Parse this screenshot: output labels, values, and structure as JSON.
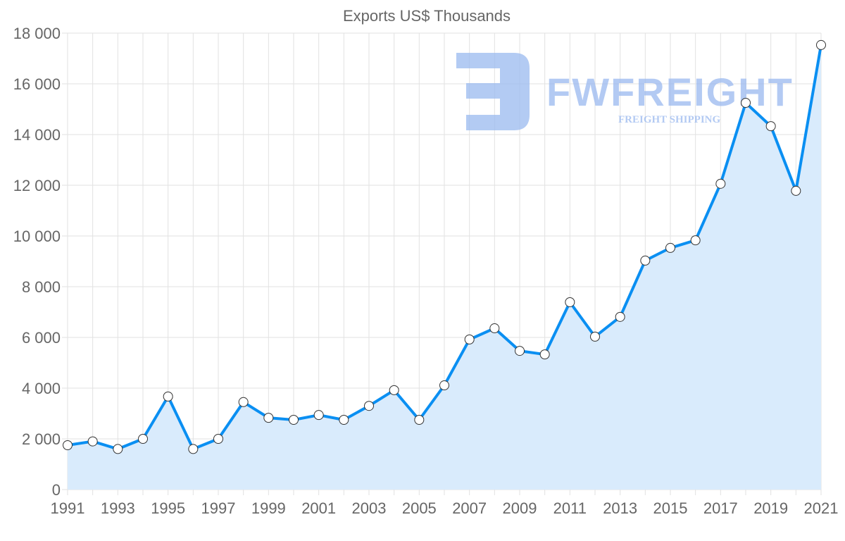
{
  "chart_data": {
    "type": "area",
    "title": "Exports US$ Thousands",
    "xlabel": "",
    "ylabel": "",
    "x": [
      1991,
      1992,
      1993,
      1994,
      1995,
      1996,
      1997,
      1998,
      1999,
      2000,
      2001,
      2002,
      2003,
      2004,
      2005,
      2006,
      2007,
      2008,
      2009,
      2010,
      2011,
      2012,
      2013,
      2014,
      2015,
      2016,
      2017,
      2018,
      2019,
      2020,
      2021
    ],
    "series": [
      {
        "name": "Exports US$ Thousands",
        "values": [
          1750,
          1900,
          1600,
          2000,
          3670,
          1600,
          2000,
          3450,
          2830,
          2750,
          2940,
          2750,
          3300,
          3920,
          2750,
          4110,
          5920,
          6360,
          5470,
          5330,
          7390,
          6030,
          6810,
          9030,
          9530,
          9830,
          12060,
          15250,
          14330,
          11780,
          17530
        ]
      }
    ],
    "xticks": [
      "1991",
      "1993",
      "1995",
      "1997",
      "1999",
      "2001",
      "2003",
      "2005",
      "2007",
      "2009",
      "2011",
      "2013",
      "2015",
      "2017",
      "2019",
      "2021"
    ],
    "yticks": [
      "0",
      "2 000",
      "4 000",
      "6 000",
      "8 000",
      "10 000",
      "12 000",
      "14 000",
      "16 000",
      "18 000"
    ],
    "ylim": [
      0,
      18000
    ],
    "xlim": [
      1991,
      2021
    ],
    "grid": true,
    "legend": "none",
    "colors": {
      "line": "#0a8ff2",
      "fill": "#d9ebfc",
      "grid": "#e2e2e2",
      "text": "#666666",
      "watermark": "#9ab9ef"
    }
  },
  "watermark": {
    "brand": "FWFREIGHT",
    "tagline": "FREIGHT SHIPPING"
  }
}
